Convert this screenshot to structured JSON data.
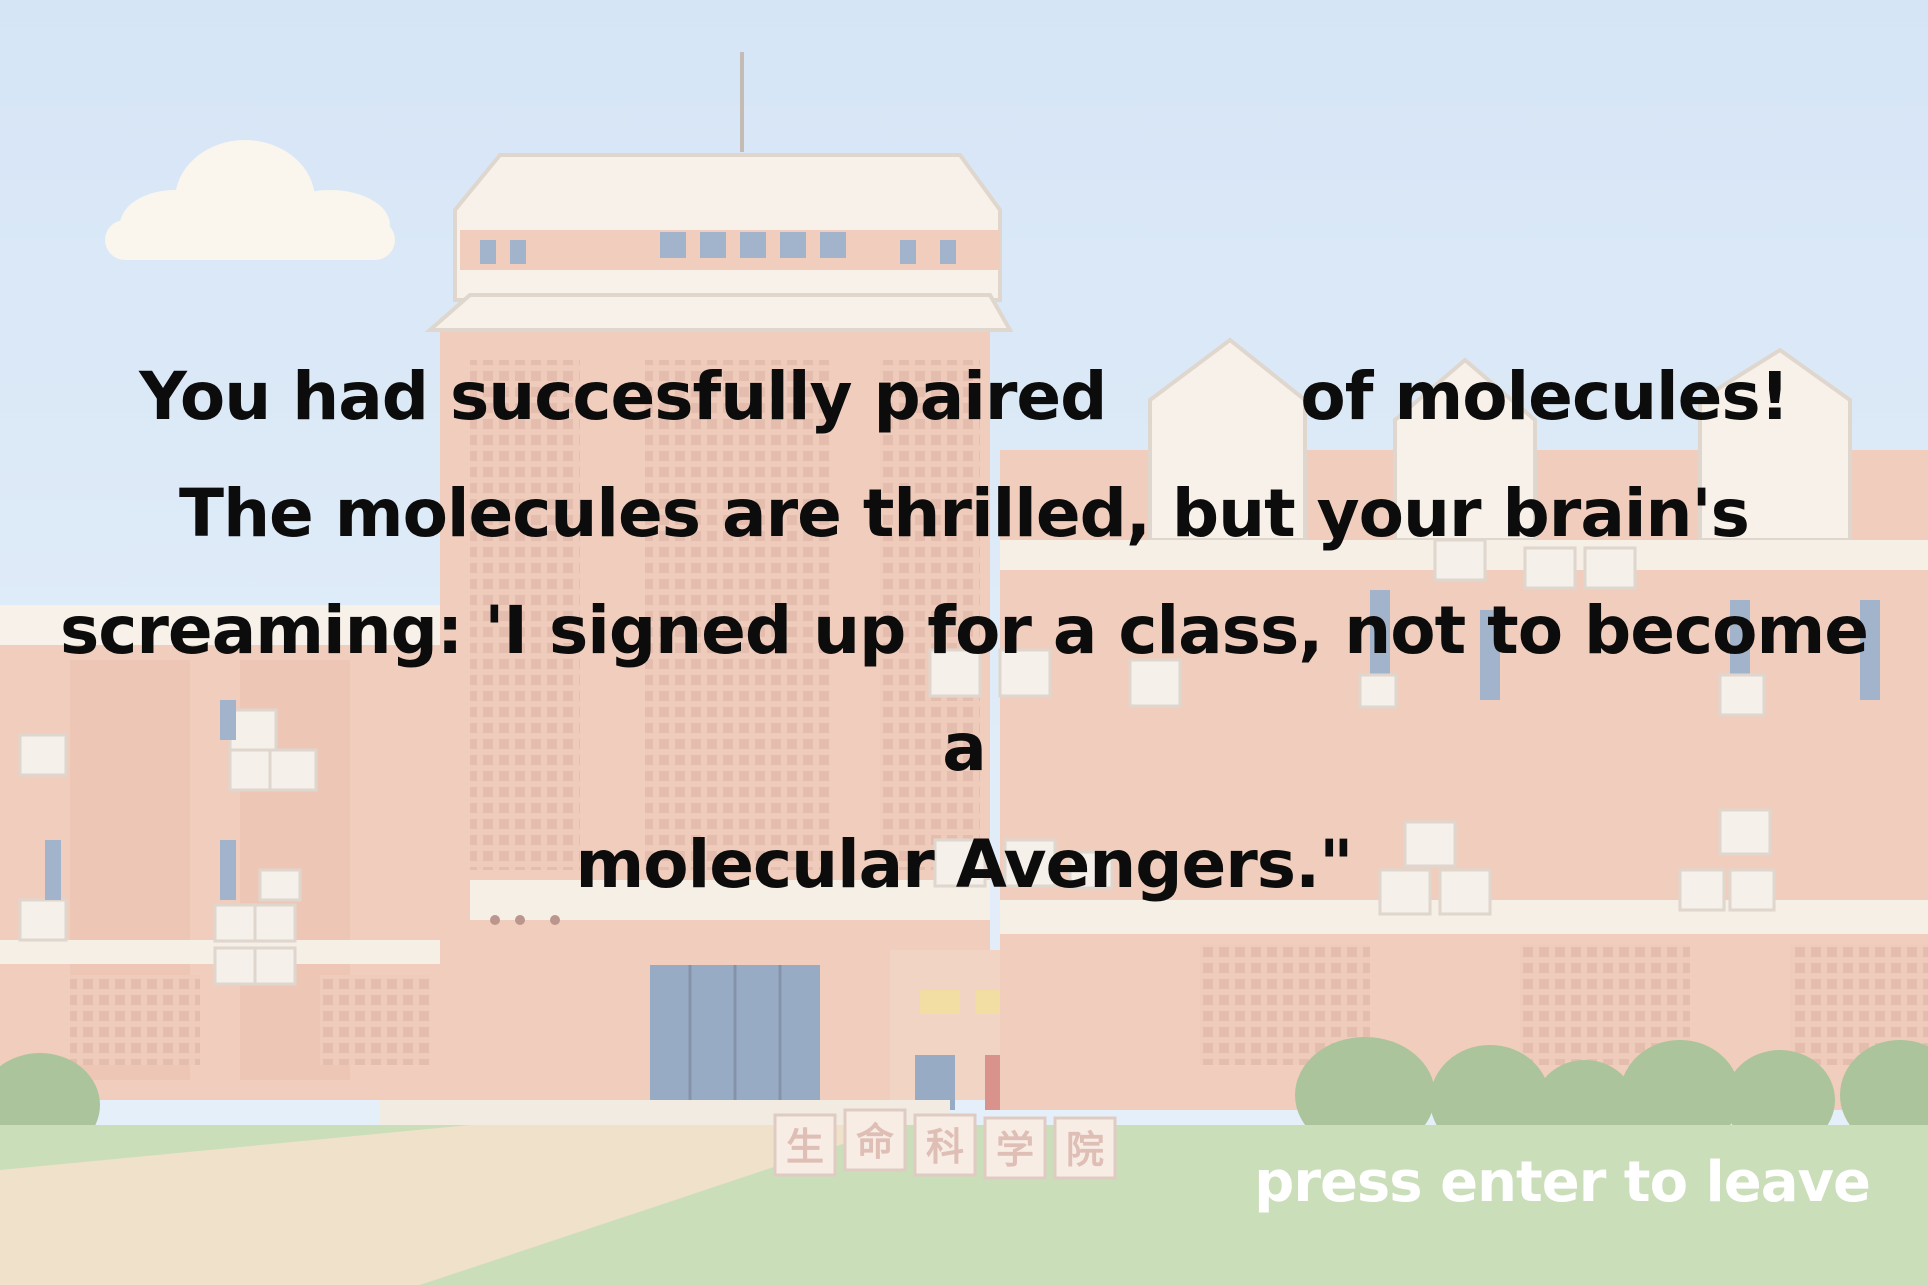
{
  "message": {
    "line1_before": "You had succesfully paired",
    "paired_count": "",
    "line1_after": "of molecules!",
    "line2": "The molecules are thrilled, but your brain's",
    "line3": "screaming: 'I signed up for a class, not to become a",
    "line4": "molecular Avengers.\""
  },
  "prompt": {
    "label": "press enter to leave"
  },
  "building_sign": {
    "chars": [
      "生",
      "命",
      "科",
      "学",
      "院"
    ]
  },
  "colors": {
    "sky": "#c7dcf0",
    "brick": "#e7a98e",
    "grass": "#b9d3a0",
    "text": "#0c0c0c",
    "prompt": "#ffffff"
  }
}
